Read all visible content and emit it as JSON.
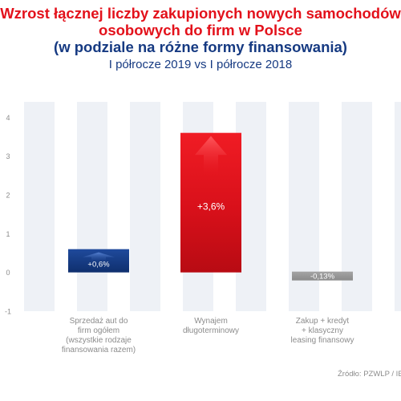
{
  "chart_data": {
    "type": "bar",
    "title_lines": [
      "Wzrost łącznej liczby zakupionych nowych samochodów",
      "osobowych do firm w Polsce",
      "(w podziale na różne formy finansowania)"
    ],
    "subtitle": "I półrocze 2019 vs I półrocze 2018",
    "categories": [
      "Sprzedaż aut do firm ogółem (wszystkie rodzaje finansowania razem)",
      "Wynajem długoterminowy",
      "Zakup + kredyt + klasyczny leasing finansowy"
    ],
    "category_lines": [
      [
        "Sprzedaż aut do",
        "firm ogółem",
        "(wszystkie rodzaje",
        "finansowania razem)"
      ],
      [
        "Wynajem",
        "długoterminowy"
      ],
      [
        "Zakup + kredyt",
        "+ klasyczny",
        "leasing finansowy"
      ]
    ],
    "values": [
      0.6,
      3.6,
      -0.13
    ],
    "value_labels": [
      "+0,6%",
      "+3,6%",
      "-0,13%"
    ],
    "bar_colors": [
      "#163a82",
      "#e3111b",
      "#9a9a9a"
    ],
    "yticks": [
      -1,
      0,
      1,
      2,
      3,
      4
    ],
    "ytick_labels": [
      "-1",
      "0",
      "1",
      "2",
      "3",
      "4"
    ],
    "ylim": [
      -1,
      4.4
    ],
    "xlabel": "",
    "ylabel": "",
    "grid": "vertical stripes",
    "source": "Źródło: PZWLP / IE"
  },
  "colors": {
    "title_red": "#e3111b",
    "title_navy": "#163a82",
    "stripe": "#eef1f6",
    "axis_text": "#8c8c8c"
  }
}
